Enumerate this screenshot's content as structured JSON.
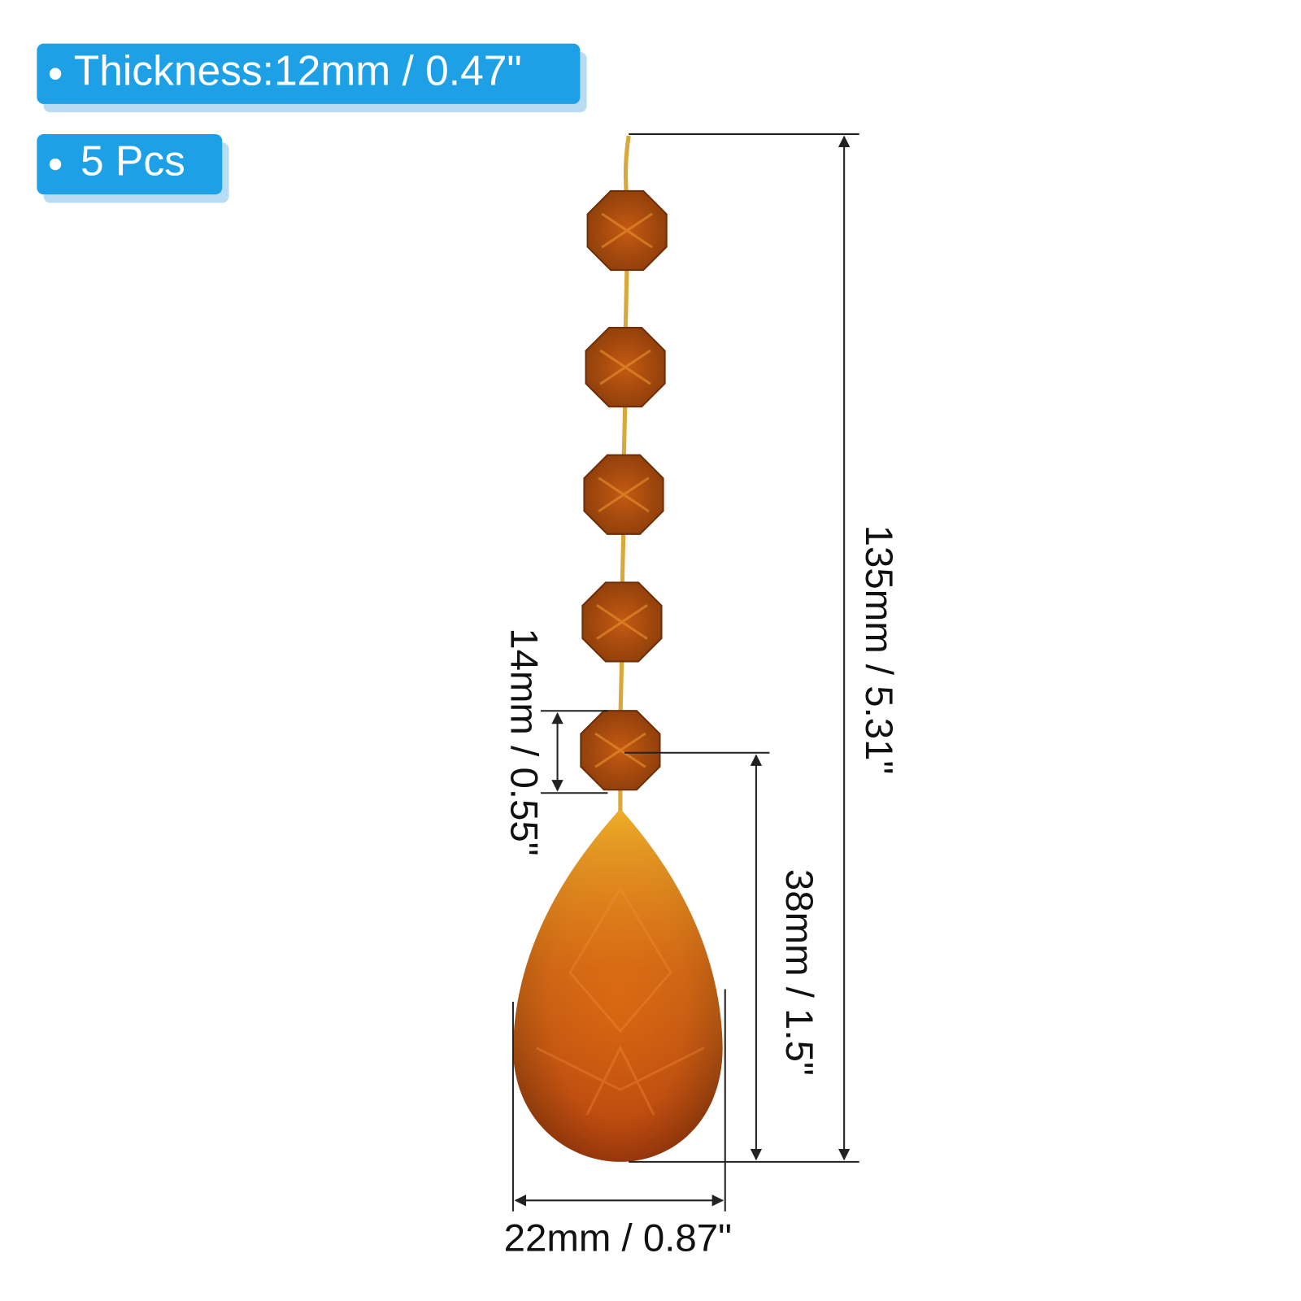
{
  "badges": [
    {
      "text": "Thickness:12mm / 0.47\""
    },
    {
      "text": "5 Pcs"
    }
  ],
  "dimensions": {
    "total_length": "135mm / 5.31\"",
    "bead_size": "14mm / 0.55\"",
    "drop_length": "38mm / 1.5\"",
    "drop_width": "22mm / 0.87\""
  }
}
